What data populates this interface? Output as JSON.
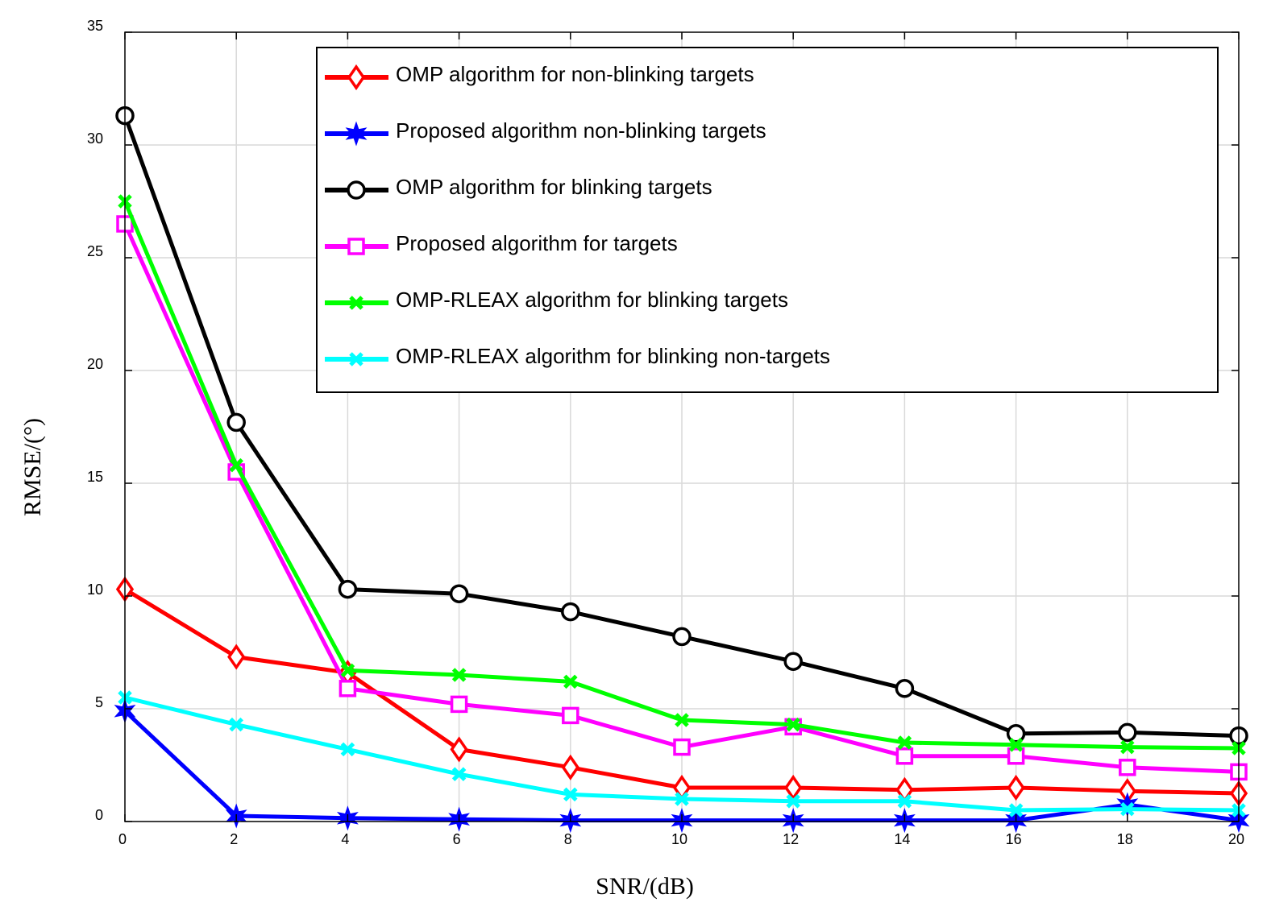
{
  "chart_data": {
    "type": "line",
    "xlabel": "SNR/(dB)",
    "ylabel": "RMSE/(°)",
    "xlim": [
      0,
      20
    ],
    "ylim": [
      0,
      35
    ],
    "xticks": [
      "0",
      "2",
      "4",
      "6",
      "8",
      "10",
      "12",
      "14",
      "16",
      "18",
      "20"
    ],
    "yticks": [
      "0",
      "5",
      "10",
      "15",
      "20",
      "25",
      "30",
      "35"
    ],
    "grid": true,
    "legend_position": "top-right",
    "x": [
      0,
      2,
      4,
      6,
      8,
      10,
      12,
      14,
      16,
      18,
      20
    ],
    "series": [
      {
        "name": "OMP algorithm for non-blinking targets",
        "color": "#ff0000",
        "marker": "diamond",
        "values": [
          10.3,
          7.3,
          6.6,
          3.2,
          2.4,
          1.5,
          1.5,
          1.4,
          1.5,
          1.35,
          1.25
        ]
      },
      {
        "name": "Proposed algorithm non-blinking targets",
        "color": "#0000ff",
        "marker": "star",
        "values": [
          4.9,
          0.25,
          0.15,
          0.1,
          0.05,
          0.05,
          0.05,
          0.05,
          0.05,
          0.75,
          0.05
        ]
      },
      {
        "name": "OMP algorithm for blinking targets",
        "color": "#000000",
        "marker": "circle",
        "values": [
          31.3,
          17.7,
          10.3,
          10.1,
          9.3,
          8.2,
          7.1,
          5.9,
          3.9,
          3.95,
          3.8
        ]
      },
      {
        "name": "Proposed algorithm for targets",
        "color": "#ff00ff",
        "marker": "square",
        "values": [
          26.5,
          15.5,
          5.9,
          5.2,
          4.7,
          3.3,
          4.2,
          2.9,
          2.9,
          2.4,
          2.2
        ]
      },
      {
        "name": "OMP-RLEAX algorithm for blinking targets",
        "color": "#00ff00",
        "marker": "x",
        "values": [
          27.5,
          15.8,
          6.7,
          6.5,
          6.2,
          4.5,
          4.3,
          3.5,
          3.4,
          3.3,
          3.25
        ]
      },
      {
        "name": "OMP-RLEAX algorithm for blinking non-targets",
        "color": "#00ffff",
        "marker": "x",
        "values": [
          5.5,
          4.3,
          3.2,
          2.1,
          1.2,
          1.0,
          0.9,
          0.9,
          0.5,
          0.55,
          0.5
        ]
      }
    ]
  }
}
